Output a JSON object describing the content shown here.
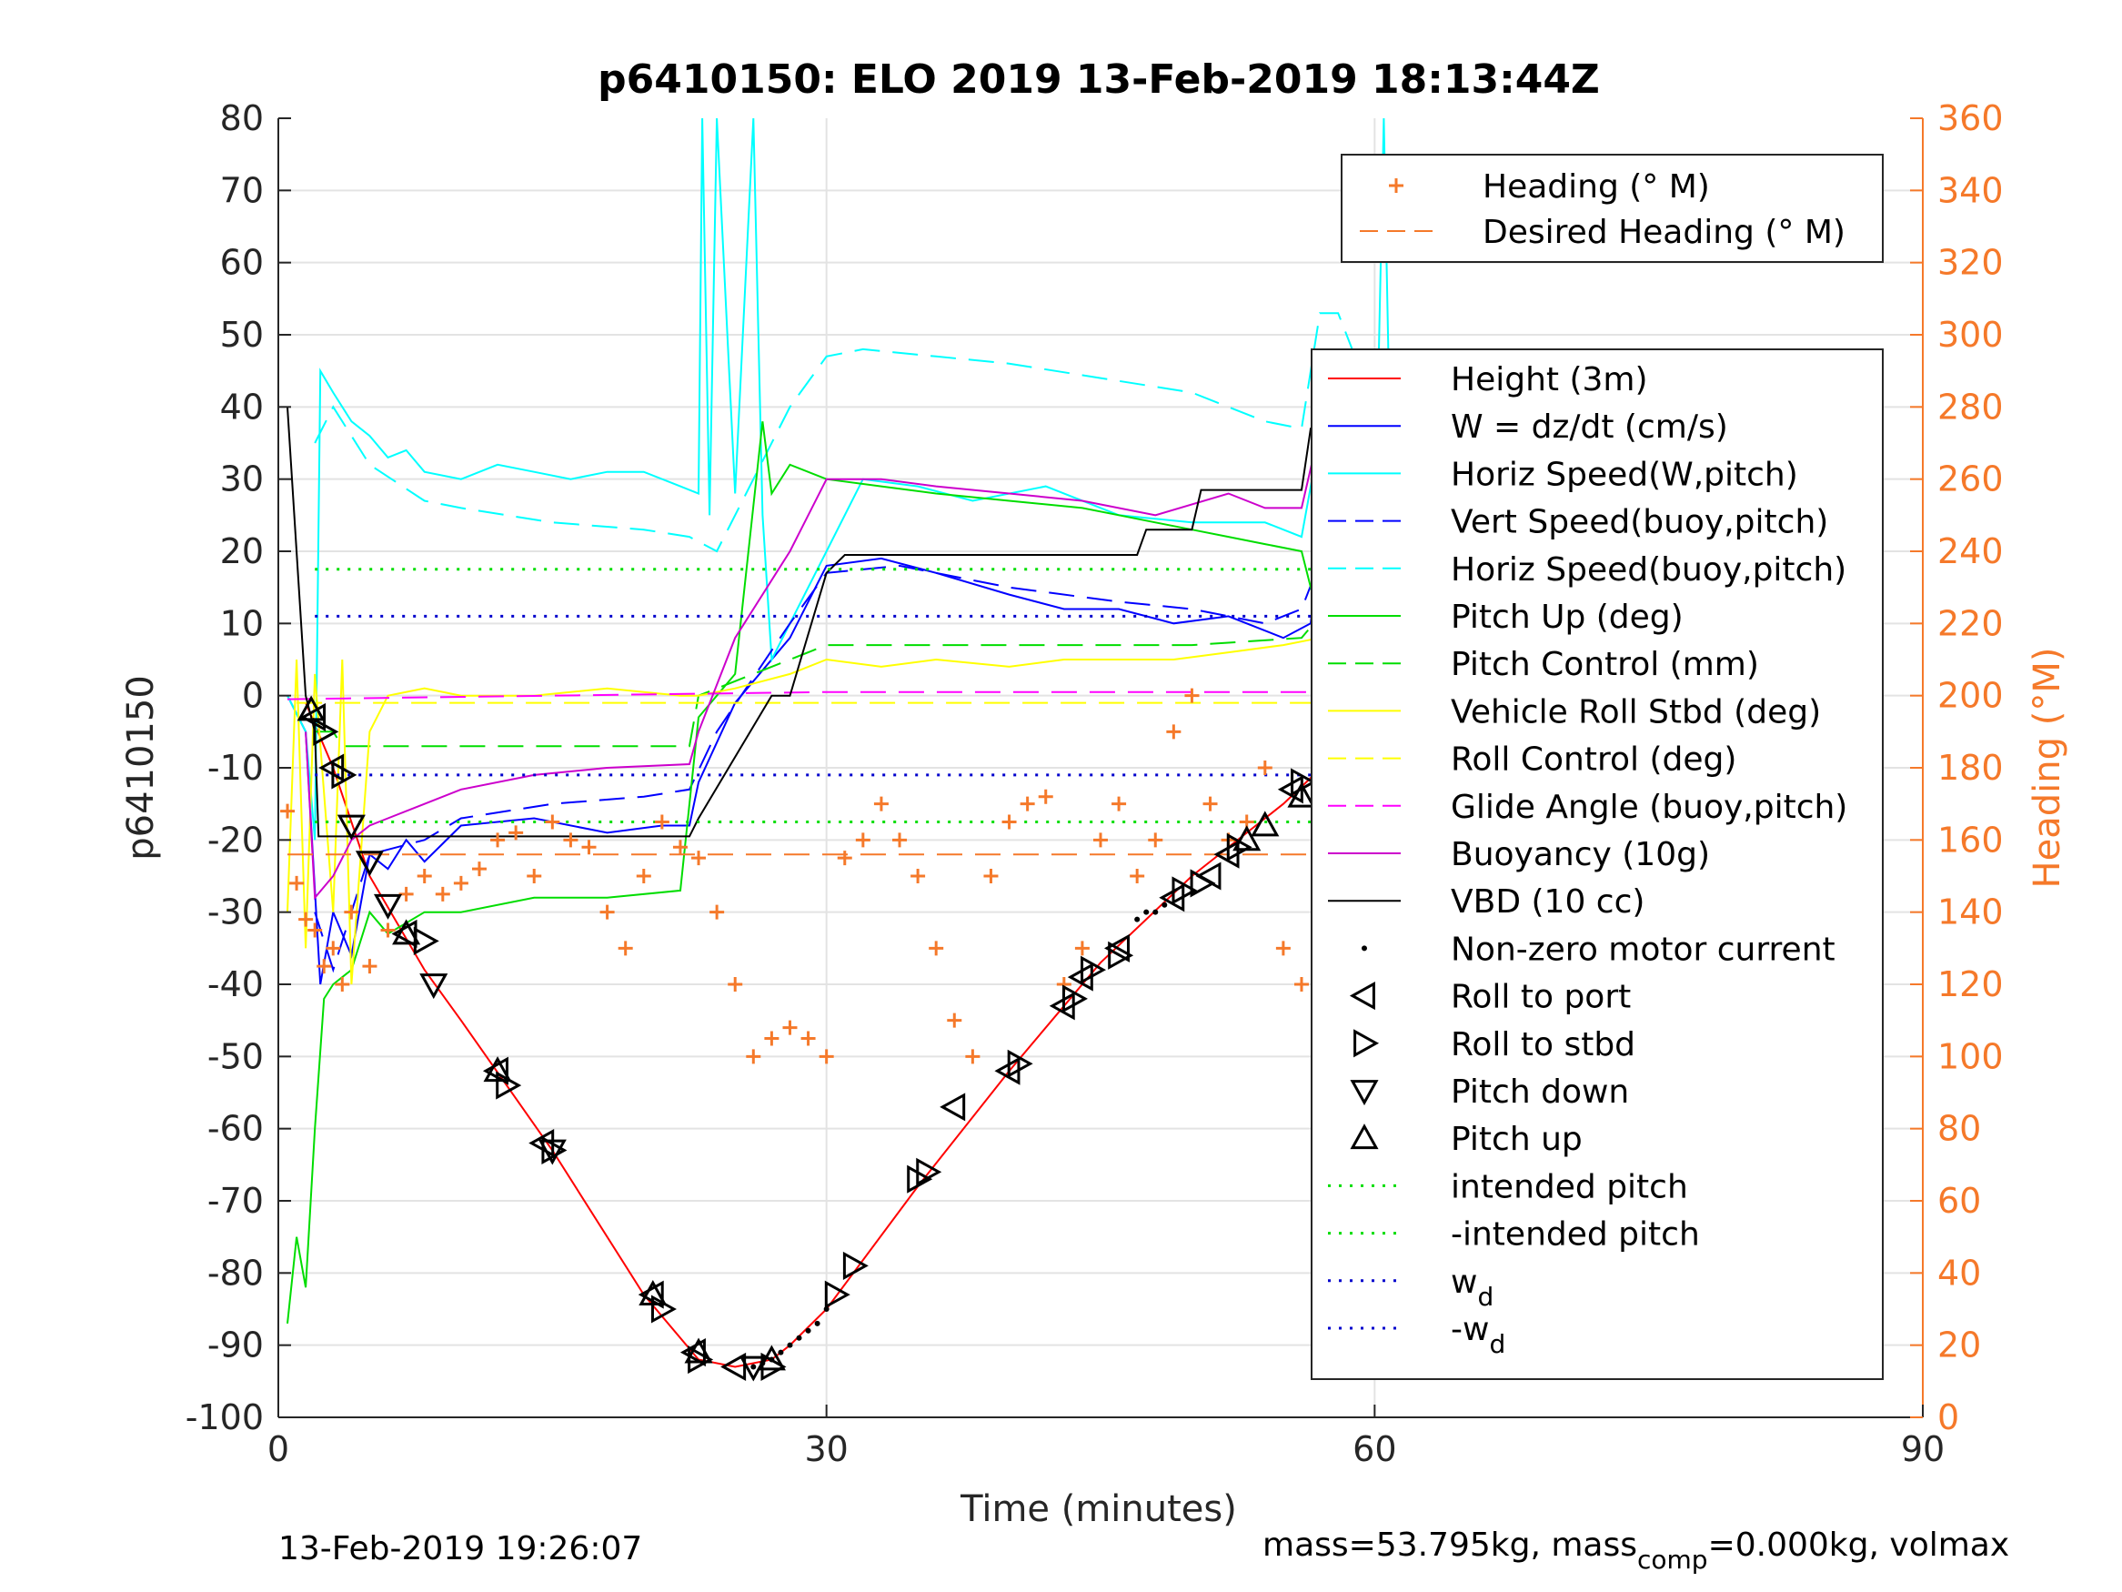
{
  "chart_data": {
    "type": "line",
    "title": "p6410150: ELO 2019 13-Feb-2019 18:13:44Z",
    "xlabel": "Time (minutes)",
    "ylabel": "p6410150",
    "y2label": "Heading (°M)",
    "xlim": [
      0,
      90
    ],
    "ylim": [
      -100,
      80
    ],
    "y2lim": [
      0,
      360
    ],
    "xticks": [
      0,
      30,
      60,
      90
    ],
    "yticks": [
      80,
      70,
      60,
      50,
      40,
      30,
      20,
      10,
      0,
      -10,
      -20,
      -30,
      -40,
      -50,
      -60,
      -70,
      -80,
      -90,
      -100
    ],
    "y2ticks": [
      360,
      340,
      320,
      300,
      280,
      260,
      240,
      220,
      200,
      180,
      160,
      140,
      120,
      100,
      80,
      60,
      40,
      20,
      0
    ],
    "grid": true,
    "footer_left": "13-Feb-2019 19:26:07",
    "footer_right": "mass=53.795kg, mass",
    "footer_right_sub": "comp",
    "footer_right_tail": "=0.000kg, volmax",
    "legend_heading": [
      {
        "label": "Heading (° M)",
        "color": "#f5792a",
        "style": "plus"
      },
      {
        "label": "Desired Heading (° M)",
        "color": "#f5792a",
        "style": "dash"
      }
    ],
    "legend_main": [
      {
        "label": "Height (3m)",
        "color": "#ff0000",
        "style": "solid"
      },
      {
        "label": "W = dz/dt (cm/s)",
        "color": "#0000ff",
        "style": "solid"
      },
      {
        "label": "Horiz Speed(W,pitch)",
        "color": "#00ffff",
        "style": "solid"
      },
      {
        "label": "Vert Speed(buoy,pitch)",
        "color": "#0000ff",
        "style": "dash"
      },
      {
        "label": "Horiz Speed(buoy,pitch)",
        "color": "#00ffff",
        "style": "dash"
      },
      {
        "label": "Pitch Up (deg)",
        "color": "#00dd00",
        "style": "solid"
      },
      {
        "label": "Pitch Control (mm)",
        "color": "#00dd00",
        "style": "dash"
      },
      {
        "label": "Vehicle Roll Stbd (deg)",
        "color": "#ffff00",
        "style": "solid"
      },
      {
        "label": "Roll Control (deg)",
        "color": "#ffff00",
        "style": "dash"
      },
      {
        "label": "Glide Angle (buoy,pitch)",
        "color": "#ff00ff",
        "style": "dash"
      },
      {
        "label": "Buoyancy (10g)",
        "color": "#cc00cc",
        "style": "solid"
      },
      {
        "label": "VBD (10 cc)",
        "color": "#000000",
        "style": "solid"
      },
      {
        "label": "Non-zero motor current",
        "color": "#000000",
        "style": "dot"
      },
      {
        "label": "Roll to port",
        "color": "#000000",
        "style": "tri-left"
      },
      {
        "label": "Roll to stbd",
        "color": "#000000",
        "style": "tri-right"
      },
      {
        "label": "Pitch down",
        "color": "#000000",
        "style": "tri-down"
      },
      {
        "label": "Pitch up",
        "color": "#000000",
        "style": "tri-up"
      },
      {
        "label": "intended pitch",
        "color": "#00dd00",
        "style": "dotted"
      },
      {
        "label": "-intended pitch",
        "color": "#00dd00",
        "style": "dotted"
      },
      {
        "label": "w",
        "sub": "d",
        "color": "#0000cc",
        "style": "dotted"
      },
      {
        "label": "-w",
        "sub": "d",
        "color": "#0000cc",
        "style": "dotted"
      }
    ],
    "series": [
      {
        "name": "Height (3m)",
        "color": "#ff0000",
        "style": "solid",
        "x": [
          1.5,
          3,
          5,
          8,
          10,
          15,
          20,
          23,
          25,
          27,
          28,
          30,
          35,
          40,
          45,
          50,
          55,
          60,
          61
        ],
        "y": [
          -1,
          -10,
          -25,
          -38,
          -45,
          -63,
          -83,
          -92,
          -93,
          -92,
          -90,
          -85,
          -68,
          -52,
          -37,
          -25,
          -15,
          -3,
          0
        ]
      },
      {
        "name": "W = dz/dt (cm/s)",
        "color": "#0000ff",
        "style": "solid",
        "x": [
          0.5,
          1.5,
          2.3,
          3,
          4,
          5,
          6,
          7,
          8,
          10,
          14,
          18,
          21,
          22.5,
          23,
          25,
          28,
          30,
          33,
          36,
          40,
          43,
          46,
          49,
          52,
          55,
          56.5,
          57,
          58,
          59,
          60,
          61
        ],
        "y": [
          0,
          -5,
          -40,
          -30,
          -36,
          -22,
          -24,
          -20,
          -23,
          -18,
          -17,
          -19,
          -18,
          -18,
          -12,
          -1,
          8,
          18,
          19,
          17,
          14,
          12,
          12,
          10,
          11,
          8,
          10,
          22,
          28,
          14,
          16,
          20
        ]
      },
      {
        "name": "Horiz Speed(W,pitch)",
        "color": "#00ffff",
        "style": "solid",
        "x": [
          0.5,
          1.5,
          2,
          2.3,
          3,
          4,
          5,
          6,
          7,
          8,
          10,
          12,
          14,
          16,
          18,
          20,
          22,
          23,
          23.2,
          23.6,
          24,
          25,
          26,
          26.5,
          27,
          28,
          30,
          32,
          35,
          38,
          42,
          46,
          50,
          54,
          56,
          57,
          58,
          59,
          60,
          60.5,
          61
        ],
        "y": [
          0,
          -5,
          -20,
          45,
          42,
          38,
          36,
          33,
          34,
          31,
          30,
          32,
          31,
          30,
          31,
          31,
          29,
          28,
          80,
          25,
          80,
          28,
          80,
          25,
          5,
          10,
          20,
          30,
          29,
          27,
          29,
          25,
          24,
          24,
          22,
          36,
          35,
          30,
          20,
          80,
          15
        ]
      },
      {
        "name": "Vert Speed(buoy,pitch)",
        "color": "#0000ff",
        "style": "dash",
        "x": [
          2,
          3,
          5,
          8,
          10,
          15,
          20,
          22.5,
          24,
          28,
          30,
          34,
          40,
          46,
          50,
          54,
          56,
          58,
          60
        ],
        "y": [
          -30,
          -38,
          -22,
          -20,
          -17,
          -15,
          -14,
          -13,
          -5,
          10,
          17,
          18,
          15,
          13,
          12,
          10,
          12,
          25,
          20
        ]
      },
      {
        "name": "Horiz Speed(buoy,pitch)",
        "color": "#00ffff",
        "style": "dash",
        "x": [
          2,
          3,
          5,
          8,
          10,
          15,
          20,
          22.5,
          24,
          26,
          28,
          30,
          32,
          36,
          40,
          45,
          50,
          54,
          56,
          57,
          58,
          60
        ],
        "y": [
          35,
          40,
          32,
          27,
          26,
          24,
          23,
          22,
          20,
          30,
          40,
          47,
          48,
          47,
          46,
          44,
          42,
          38,
          37,
          53,
          53,
          40
        ]
      },
      {
        "name": "Pitch Up (deg)",
        "color": "#00dd00",
        "style": "solid",
        "x": [
          0.5,
          1,
          1.5,
          2,
          2.5,
          3,
          4,
          5,
          6,
          8,
          10,
          14,
          18,
          22,
          23,
          25,
          26.5,
          27,
          28,
          30,
          33,
          36,
          40,
          44,
          46,
          48,
          50,
          52,
          54,
          56,
          57,
          58,
          59,
          60
        ],
        "y": [
          -87,
          -75,
          -82,
          -60,
          -42,
          -40,
          -38,
          -30,
          -33,
          -30,
          -30,
          -28,
          -28,
          -27,
          -3,
          3,
          38,
          28,
          32,
          30,
          29,
          28,
          27,
          26,
          25,
          24,
          23,
          22,
          21,
          20,
          10,
          28,
          20,
          18
        ]
      },
      {
        "name": "Pitch Control (mm)",
        "color": "#00dd00",
        "style": "dash",
        "x": [
          2,
          3,
          3.5,
          10,
          22.5,
          23,
          28,
          30,
          40,
          50,
          56,
          57,
          61
        ],
        "y": [
          -5,
          -5,
          -7,
          -7,
          -7,
          0,
          5,
          7,
          7,
          7,
          8,
          11,
          11
        ]
      },
      {
        "name": "Vehicle Roll Stbd (deg)",
        "color": "#ffff00",
        "style": "solid",
        "x": [
          0.5,
          1,
          1.5,
          2,
          3,
          3.5,
          4,
          5,
          6,
          8,
          10,
          14,
          18,
          22,
          23,
          25,
          28,
          30,
          33,
          36,
          40,
          43,
          46,
          49,
          52,
          55,
          57,
          58,
          59,
          60
        ],
        "y": [
          -30,
          5,
          -35,
          3,
          -30,
          5,
          -40,
          -5,
          0,
          1,
          0,
          0,
          1,
          0,
          0,
          1,
          3,
          5,
          4,
          5,
          4,
          5,
          5,
          5,
          6,
          7,
          8,
          9,
          30,
          10
        ]
      },
      {
        "name": "Roll Control (deg)",
        "color": "#ffff00",
        "style": "dash",
        "x": [
          1,
          61
        ],
        "y": [
          -1,
          -1
        ]
      },
      {
        "name": "Glide Angle (buoy,pitch)",
        "color": "#ff00ff",
        "style": "dash",
        "x": [
          0.5,
          30,
          61
        ],
        "y": [
          -0.5,
          0.5,
          0.5
        ]
      },
      {
        "name": "Buoyancy (10g)",
        "color": "#cc00cc",
        "style": "solid",
        "x": [
          1.5,
          2,
          3,
          4,
          5,
          6,
          8,
          10,
          14,
          18,
          22.5,
          23,
          25,
          28,
          30,
          33,
          36,
          40,
          44,
          48,
          52,
          54,
          56,
          57,
          58,
          60
        ],
        "y": [
          -5,
          -28,
          -25,
          -20,
          -18,
          -17,
          -15,
          -13,
          -11,
          -10,
          -9.5,
          -5,
          8,
          20,
          30,
          30,
          29,
          28,
          27,
          25,
          28,
          26,
          26,
          37,
          35,
          35
        ]
      },
      {
        "name": "VBD (10 cc)",
        "color": "#000000",
        "style": "solid",
        "x": [
          0.5,
          1.5,
          2,
          2.2,
          22.5,
          23,
          27,
          28,
          30,
          31,
          40,
          47,
          47.5,
          50,
          50.5,
          56,
          56.5,
          57,
          58,
          61
        ],
        "y": [
          40,
          0,
          -5,
          -19.5,
          -19.5,
          -17,
          0,
          0,
          17,
          19.5,
          19.5,
          19.5,
          23,
          23,
          28.5,
          28.5,
          37,
          37,
          43,
          43
        ]
      },
      {
        "name": "intended pitch",
        "color": "#00dd00",
        "style": "dotted",
        "x": [
          2,
          61
        ],
        "y": [
          17.5,
          17.5
        ]
      },
      {
        "name": "-intended pitch",
        "color": "#00dd00",
        "style": "dotted",
        "x": [
          2,
          61
        ],
        "y": [
          -17.5,
          -17.5
        ]
      },
      {
        "name": "w",
        "color": "#0000cc",
        "style": "dotted",
        "x": [
          2,
          61
        ],
        "y": [
          11,
          11
        ]
      },
      {
        "name": "-w",
        "color": "#0000cc",
        "style": "dotted",
        "x": [
          2,
          61
        ],
        "y": [
          -11,
          -11
        ]
      },
      {
        "name": "Desired Heading (° M)",
        "color": "#f5792a",
        "style": "dash",
        "axis": "right",
        "x": [
          0.5,
          61
        ],
        "y": [
          156,
          156
        ]
      },
      {
        "name": "Heading (° M)",
        "color": "#f5792a",
        "style": "plus",
        "axis": "right",
        "x": [
          0.5,
          1,
          1.5,
          2,
          2.5,
          3,
          3.5,
          4,
          5,
          6,
          7,
          8,
          9,
          10,
          11,
          12,
          13,
          14,
          15,
          16,
          17,
          18,
          19,
          20,
          21,
          22,
          23,
          24,
          25,
          26,
          27,
          28,
          29,
          30,
          31,
          32,
          33,
          34,
          35,
          36,
          37,
          38,
          39,
          40,
          41,
          42,
          43,
          44,
          45,
          46,
          47,
          48,
          49,
          50,
          51,
          52,
          53,
          54,
          55,
          56,
          57,
          58,
          59,
          60,
          61
        ],
        "y": [
          168,
          148,
          138,
          135,
          125,
          130,
          120,
          140,
          125,
          135,
          145,
          150,
          145,
          148,
          152,
          160,
          162,
          150,
          165,
          160,
          158,
          140,
          130,
          150,
          165,
          158,
          155,
          140,
          120,
          100,
          105,
          108,
          105,
          100,
          155,
          160,
          170,
          160,
          150,
          130,
          110,
          100,
          150,
          165,
          170,
          172,
          120,
          130,
          160,
          170,
          150,
          160,
          190,
          200,
          170,
          160,
          165,
          180,
          130,
          120,
          180,
          170,
          150,
          140,
          180
        ]
      }
    ],
    "markers": {
      "tri_left": {
        "x": [
          2,
          3,
          7,
          12,
          14.5,
          20.5,
          22.8,
          25,
          37,
          40,
          43,
          44,
          46,
          49,
          51,
          52,
          55.5,
          58,
          59
        ],
        "y": [
          -3,
          -10,
          -33,
          -52,
          -62,
          -83,
          -91,
          -93,
          -57,
          -52,
          -43,
          -39,
          -35,
          -28,
          -25,
          -22,
          -13,
          -7,
          -5
        ]
      },
      "tri_right": {
        "x": [
          2.5,
          3.5,
          8,
          12.5,
          15,
          21,
          23,
          27,
          30.5,
          31.5,
          35,
          35.5,
          40.5,
          43.5,
          44.5,
          46,
          49.5,
          50.5,
          52.5,
          56,
          58.5,
          59.5,
          60.5
        ],
        "y": [
          -5,
          -11,
          -34,
          -54,
          -63,
          -85,
          -92,
          -93,
          -83,
          -79,
          -67,
          -66,
          -51,
          -42,
          -38,
          -36,
          -27,
          -26,
          -21,
          -12,
          -6,
          -4,
          -1
        ]
      },
      "tri_down": {
        "x": [
          4,
          5,
          6,
          8.5,
          15,
          26
        ],
        "y": [
          -18,
          -23,
          -29,
          -40,
          -63,
          -93
        ]
      },
      "tri_up": {
        "x": [
          1.8,
          7,
          12,
          20.5,
          23,
          27,
          53,
          54,
          56,
          61
        ],
        "y": [
          -2,
          -33,
          -52,
          -83,
          -91,
          -92,
          -20,
          -18,
          -14,
          0
        ]
      },
      "motor_dots": {
        "x": [
          26,
          26.5,
          27,
          27.5,
          28,
          28.5,
          29,
          29.5,
          30,
          47,
          47.5,
          48,
          48.5
        ],
        "y": [
          -93,
          -92.5,
          -92,
          -91,
          -90,
          -89,
          -88,
          -87,
          -85,
          -31,
          -30,
          -30,
          -29
        ]
      }
    }
  }
}
